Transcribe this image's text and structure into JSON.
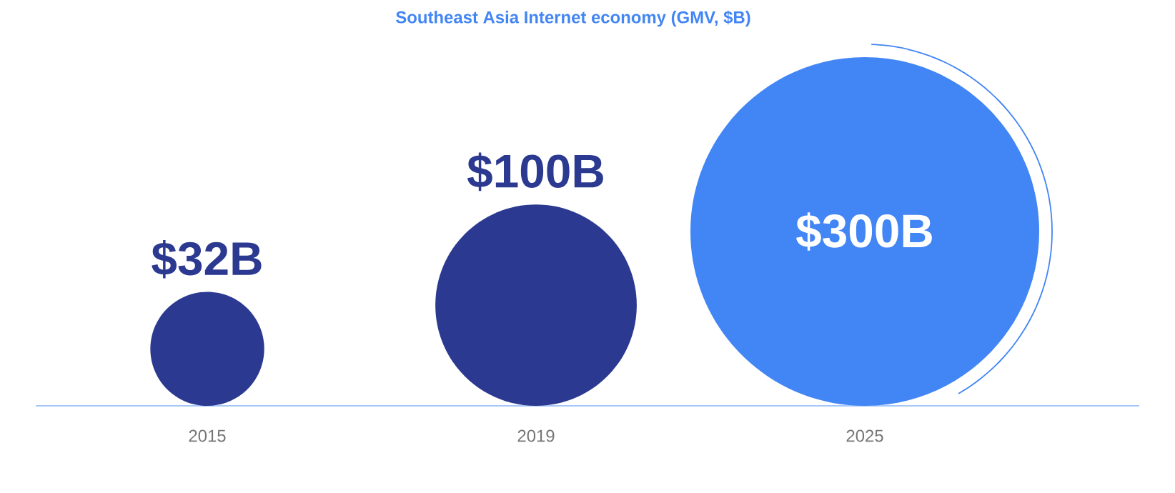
{
  "chart_data": {
    "type": "other",
    "title": "Southeast Asia Internet economy (GMV, $B)",
    "categories": [
      "2015",
      "2019",
      "2025"
    ],
    "values": [
      32,
      100,
      300
    ],
    "value_labels": [
      "$32B",
      "$100B",
      "$300B"
    ],
    "colors": [
      "#2b3990",
      "#2b3990",
      "#4285f4"
    ]
  }
}
